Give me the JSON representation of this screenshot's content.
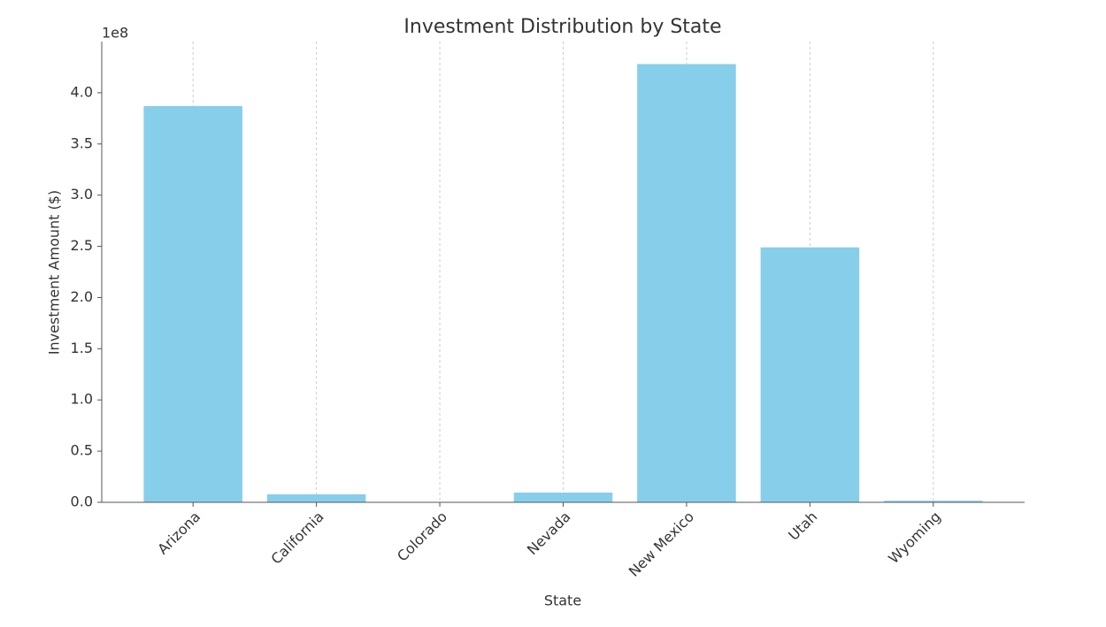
{
  "chart_data": {
    "type": "bar",
    "title": "Investment Distribution by State",
    "x_label": "State",
    "y_label": "Investment Amount ($)",
    "y_offset_label": "1e8",
    "categories": [
      "Arizona",
      "California",
      "Colorado",
      "Nevada",
      "New Mexico",
      "Utah",
      "Wyoming"
    ],
    "values": [
      387000000,
      7800000,
      0,
      9500000,
      428000000,
      249000000,
      1500000
    ],
    "color": "#87ceeb",
    "ylim": [
      0,
      450000000
    ],
    "yticks": [
      {
        "value": 0,
        "label": "0.0"
      },
      {
        "value": 50000000,
        "label": "0.5"
      },
      {
        "value": 100000000,
        "label": "1.0"
      },
      {
        "value": 150000000,
        "label": "1.5"
      },
      {
        "value": 200000000,
        "label": "2.0"
      },
      {
        "value": 250000000,
        "label": "2.5"
      },
      {
        "value": 300000000,
        "label": "3.0"
      },
      {
        "value": 350000000,
        "label": "3.5"
      },
      {
        "value": 400000000,
        "label": "4.0"
      }
    ],
    "grid": "x"
  }
}
